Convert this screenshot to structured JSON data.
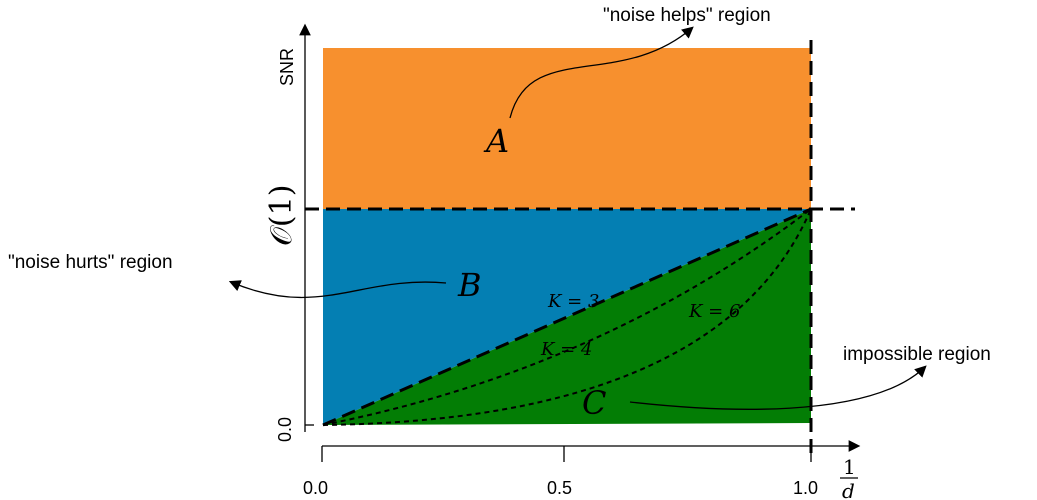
{
  "colors": {
    "region_a": "#f7902e",
    "region_b": "#047fb3",
    "region_c": "#037d05",
    "ink": "#000000"
  },
  "axes": {
    "y_label": "SNR",
    "y_mark_zero": "0.0",
    "y_mark_order": "𝒪(1)",
    "x_ticks": [
      "0.0",
      "0.5",
      "1.0"
    ],
    "x_label_numerator": "1",
    "x_label_denominator": "d"
  },
  "regions": {
    "a": {
      "label": "A",
      "annotation": "\"noise helps\" region"
    },
    "b": {
      "label": "B",
      "annotation": "\"noise hurts\" region"
    },
    "c": {
      "label": "C",
      "annotation": "impossible region"
    }
  },
  "curves": [
    {
      "label": "K = 3"
    },
    {
      "label": "K = 4"
    },
    {
      "label": "K = 6"
    }
  ]
}
